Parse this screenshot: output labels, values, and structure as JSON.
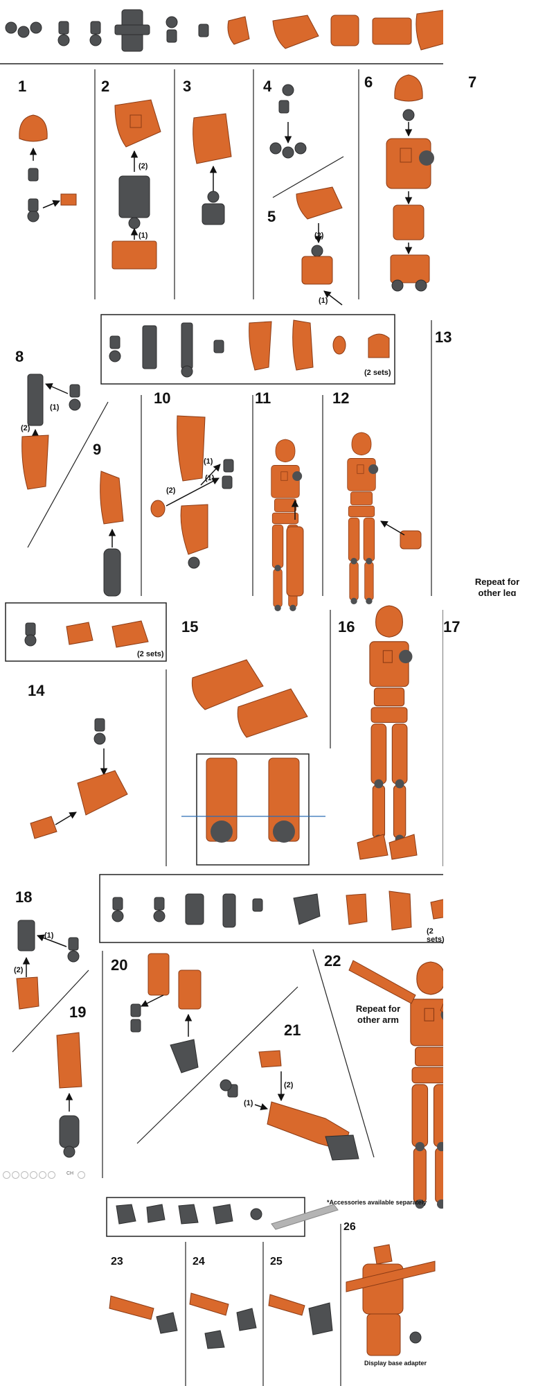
{
  "colors": {
    "orange": "#d9692c",
    "orange_dark": "#a8461a",
    "grey": "#4e5052",
    "grey_dark": "#2c2d2e",
    "line": "#222222",
    "blue": "#2a6db5",
    "wrench": "#b4b4b4"
  },
  "steps": [
    "1",
    "2",
    "3",
    "4",
    "5",
    "6",
    "7",
    "8",
    "9",
    "10",
    "11",
    "12",
    "13",
    "14",
    "15",
    "16",
    "17",
    "18",
    "19",
    "20",
    "21",
    "22",
    "23",
    "24",
    "25",
    "26"
  ],
  "labels": {
    "one": "(1)",
    "two": "(2)",
    "sets": "(2 sets)",
    "repeat_leg": "Repeat for other leg",
    "repeat_arm": "Repeat for other arm",
    "accessories": "*Accessories available separately",
    "display_base": "Display base adapter"
  },
  "icons": [
    "ball-joint-icon",
    "hinge-icon",
    "hip-joint-icon",
    "head-icon",
    "chest-icon",
    "torso-icon",
    "thigh-icon",
    "shin-icon",
    "foot-icon",
    "hand-icon",
    "wrench-icon",
    "arrow-icon"
  ],
  "controls": {
    "zoom": "CH"
  }
}
